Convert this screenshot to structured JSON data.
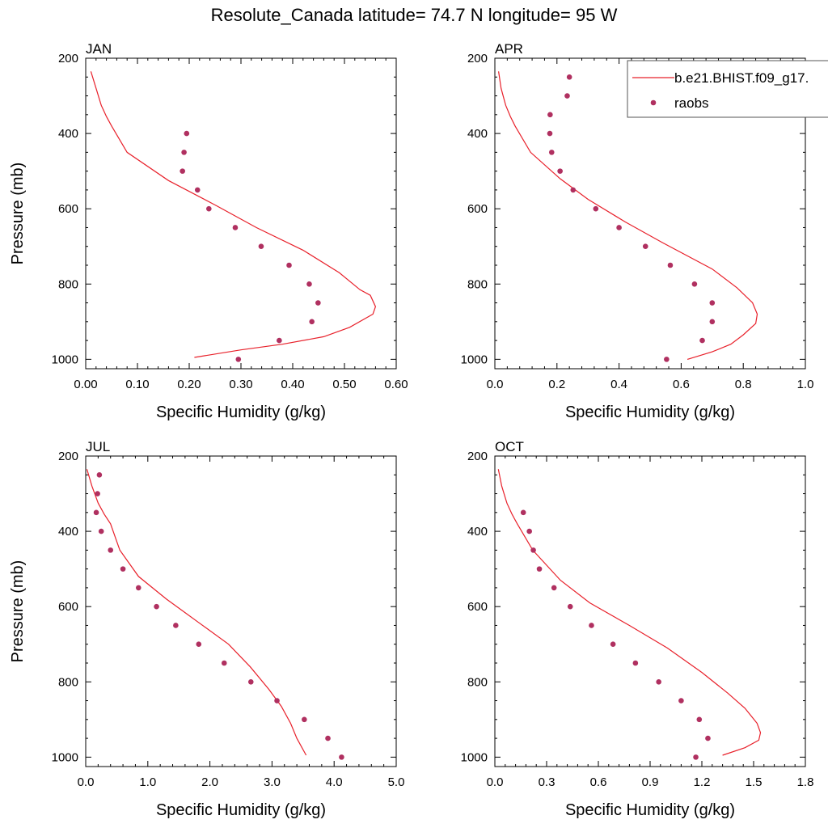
{
  "title": "Resolute_Canada  latitude= 74.7 N longitude= 95 W",
  "colors": {
    "model": "#e8202a",
    "obs": "#b03060"
  },
  "legend": {
    "placement": "top-right of APR panel",
    "model_label": "b.e21.BHIST.f09_g17.",
    "obs_label": "raobs"
  },
  "chart_data": [
    {
      "type": "line+scatter",
      "title": "JAN",
      "xlabel": "Specific Humidity (g/kg)",
      "ylabel": "Pressure (mb)",
      "xlim": [
        0,
        0.6
      ],
      "xticks": [
        0,
        0.1,
        0.2,
        0.3,
        0.4,
        0.5,
        0.6
      ],
      "xtick_labels": [
        "0.00",
        "0.10",
        "0.20",
        "0.30",
        "0.40",
        "0.50",
        "0.60"
      ],
      "ylim": [
        200,
        1025
      ],
      "yticks": [
        200,
        400,
        600,
        800,
        1000
      ],
      "ytick_labels": [
        "200",
        "400",
        "600",
        "800",
        "1000"
      ],
      "series": [
        {
          "kind": "line",
          "points": [
            [
              0.01,
              235
            ],
            [
              0.02,
              280
            ],
            [
              0.03,
              325
            ],
            [
              0.04,
              355
            ],
            [
              0.05,
              380
            ],
            [
              0.08,
              450
            ],
            [
              0.16,
              525
            ],
            [
              0.25,
              590
            ],
            [
              0.33,
              650
            ],
            [
              0.42,
              710
            ],
            [
              0.49,
              770
            ],
            [
              0.53,
              815
            ],
            [
              0.55,
              830
            ],
            [
              0.56,
              860
            ],
            [
              0.555,
              880
            ],
            [
              0.51,
              915
            ],
            [
              0.46,
              940
            ],
            [
              0.38,
              960
            ],
            [
              0.3,
              975
            ],
            [
              0.21,
              995
            ]
          ]
        },
        {
          "kind": "scatter",
          "points": [
            [
              0.195,
              400
            ],
            [
              0.19,
              450
            ],
            [
              0.187,
              500
            ],
            [
              0.216,
              550
            ],
            [
              0.238,
              600
            ],
            [
              0.289,
              650
            ],
            [
              0.339,
              700
            ],
            [
              0.393,
              750
            ],
            [
              0.432,
              800
            ],
            [
              0.449,
              850
            ],
            [
              0.437,
              900
            ],
            [
              0.374,
              950
            ],
            [
              0.295,
              1000
            ]
          ]
        }
      ]
    },
    {
      "type": "line+scatter",
      "title": "APR",
      "xlabel": "Specific Humidity (g/kg)",
      "ylabel": "",
      "xlim": [
        0,
        1.0
      ],
      "xticks": [
        0,
        0.2,
        0.4,
        0.6,
        0.8,
        1.0
      ],
      "xtick_labels": [
        "0.0",
        "0.2",
        "0.4",
        "0.6",
        "0.8",
        "1.0"
      ],
      "ylim": [
        200,
        1025
      ],
      "yticks": [
        200,
        400,
        600,
        800,
        1000
      ],
      "ytick_labels": [
        "200",
        "400",
        "600",
        "800",
        "1000"
      ],
      "series": [
        {
          "kind": "line",
          "points": [
            [
              0.012,
              235
            ],
            [
              0.02,
              280
            ],
            [
              0.035,
              325
            ],
            [
              0.05,
              355
            ],
            [
              0.065,
              380
            ],
            [
              0.115,
              450
            ],
            [
              0.21,
              520
            ],
            [
              0.3,
              575
            ],
            [
              0.42,
              635
            ],
            [
              0.54,
              690
            ],
            [
              0.7,
              760
            ],
            [
              0.78,
              810
            ],
            [
              0.83,
              850
            ],
            [
              0.845,
              880
            ],
            [
              0.84,
              905
            ],
            [
              0.8,
              935
            ],
            [
              0.76,
              960
            ],
            [
              0.7,
              980
            ],
            [
              0.62,
              1000
            ]
          ]
        },
        {
          "kind": "scatter",
          "points": [
            [
              0.24,
              250
            ],
            [
              0.233,
              300
            ],
            [
              0.178,
              350
            ],
            [
              0.177,
              400
            ],
            [
              0.183,
              450
            ],
            [
              0.21,
              500
            ],
            [
              0.252,
              550
            ],
            [
              0.325,
              600
            ],
            [
              0.4,
              650
            ],
            [
              0.485,
              700
            ],
            [
              0.565,
              750
            ],
            [
              0.643,
              800
            ],
            [
              0.7,
              850
            ],
            [
              0.7,
              900
            ],
            [
              0.668,
              950
            ],
            [
              0.553,
              1000
            ]
          ]
        }
      ]
    },
    {
      "type": "line+scatter",
      "title": "JUL",
      "xlabel": "Specific Humidity (g/kg)",
      "ylabel": "Pressure (mb)",
      "xlim": [
        0,
        5.0
      ],
      "xticks": [
        0,
        1,
        2,
        3,
        4,
        5
      ],
      "xtick_labels": [
        "0.0",
        "1.0",
        "2.0",
        "3.0",
        "4.0",
        "5.0"
      ],
      "ylim": [
        200,
        1025
      ],
      "yticks": [
        200,
        400,
        600,
        800,
        1000
      ],
      "ytick_labels": [
        "200",
        "400",
        "600",
        "800",
        "1000"
      ],
      "series": [
        {
          "kind": "line",
          "points": [
            [
              0.02,
              235
            ],
            [
              0.1,
              280
            ],
            [
              0.2,
              325
            ],
            [
              0.3,
              355
            ],
            [
              0.4,
              380
            ],
            [
              0.55,
              450
            ],
            [
              0.85,
              520
            ],
            [
              1.3,
              580
            ],
            [
              1.8,
              640
            ],
            [
              2.3,
              700
            ],
            [
              2.65,
              760
            ],
            [
              2.95,
              820
            ],
            [
              3.15,
              865
            ],
            [
              3.3,
              910
            ],
            [
              3.4,
              950
            ],
            [
              3.55,
              995
            ]
          ]
        },
        {
          "kind": "scatter",
          "points": [
            [
              0.22,
              250
            ],
            [
              0.19,
              300
            ],
            [
              0.17,
              350
            ],
            [
              0.25,
              400
            ],
            [
              0.4,
              450
            ],
            [
              0.6,
              500
            ],
            [
              0.85,
              550
            ],
            [
              1.14,
              600
            ],
            [
              1.45,
              650
            ],
            [
              1.82,
              700
            ],
            [
              2.23,
              750
            ],
            [
              2.66,
              800
            ],
            [
              3.08,
              850
            ],
            [
              3.52,
              900
            ],
            [
              3.9,
              950
            ],
            [
              4.12,
              1000
            ]
          ]
        }
      ]
    },
    {
      "type": "line+scatter",
      "title": "OCT",
      "xlabel": "Specific Humidity (g/kg)",
      "ylabel": "",
      "xlim": [
        0,
        1.8
      ],
      "xticks": [
        0,
        0.3,
        0.6,
        0.9,
        1.2,
        1.5,
        1.8
      ],
      "xtick_labels": [
        "0.0",
        "0.3",
        "0.6",
        "0.9",
        "1.2",
        "1.5",
        "1.8"
      ],
      "ylim": [
        200,
        1025
      ],
      "yticks": [
        200,
        400,
        600,
        800,
        1000
      ],
      "ytick_labels": [
        "200",
        "400",
        "600",
        "800",
        "1000"
      ],
      "series": [
        {
          "kind": "line",
          "points": [
            [
              0.02,
              235
            ],
            [
              0.04,
              280
            ],
            [
              0.07,
              325
            ],
            [
              0.1,
              355
            ],
            [
              0.13,
              380
            ],
            [
              0.22,
              450
            ],
            [
              0.38,
              530
            ],
            [
              0.55,
              590
            ],
            [
              0.78,
              650
            ],
            [
              1.0,
              710
            ],
            [
              1.2,
              775
            ],
            [
              1.35,
              830
            ],
            [
              1.45,
              870
            ],
            [
              1.52,
              910
            ],
            [
              1.54,
              935
            ],
            [
              1.53,
              955
            ],
            [
              1.45,
              975
            ],
            [
              1.32,
              995
            ]
          ]
        },
        {
          "kind": "scatter",
          "points": [
            [
              0.165,
              350
            ],
            [
              0.2,
              400
            ],
            [
              0.223,
              450
            ],
            [
              0.258,
              500
            ],
            [
              0.343,
              550
            ],
            [
              0.437,
              600
            ],
            [
              0.56,
              650
            ],
            [
              0.685,
              700
            ],
            [
              0.815,
              750
            ],
            [
              0.95,
              800
            ],
            [
              1.08,
              850
            ],
            [
              1.185,
              900
            ],
            [
              1.235,
              950
            ],
            [
              1.165,
              1000
            ]
          ]
        }
      ]
    }
  ]
}
